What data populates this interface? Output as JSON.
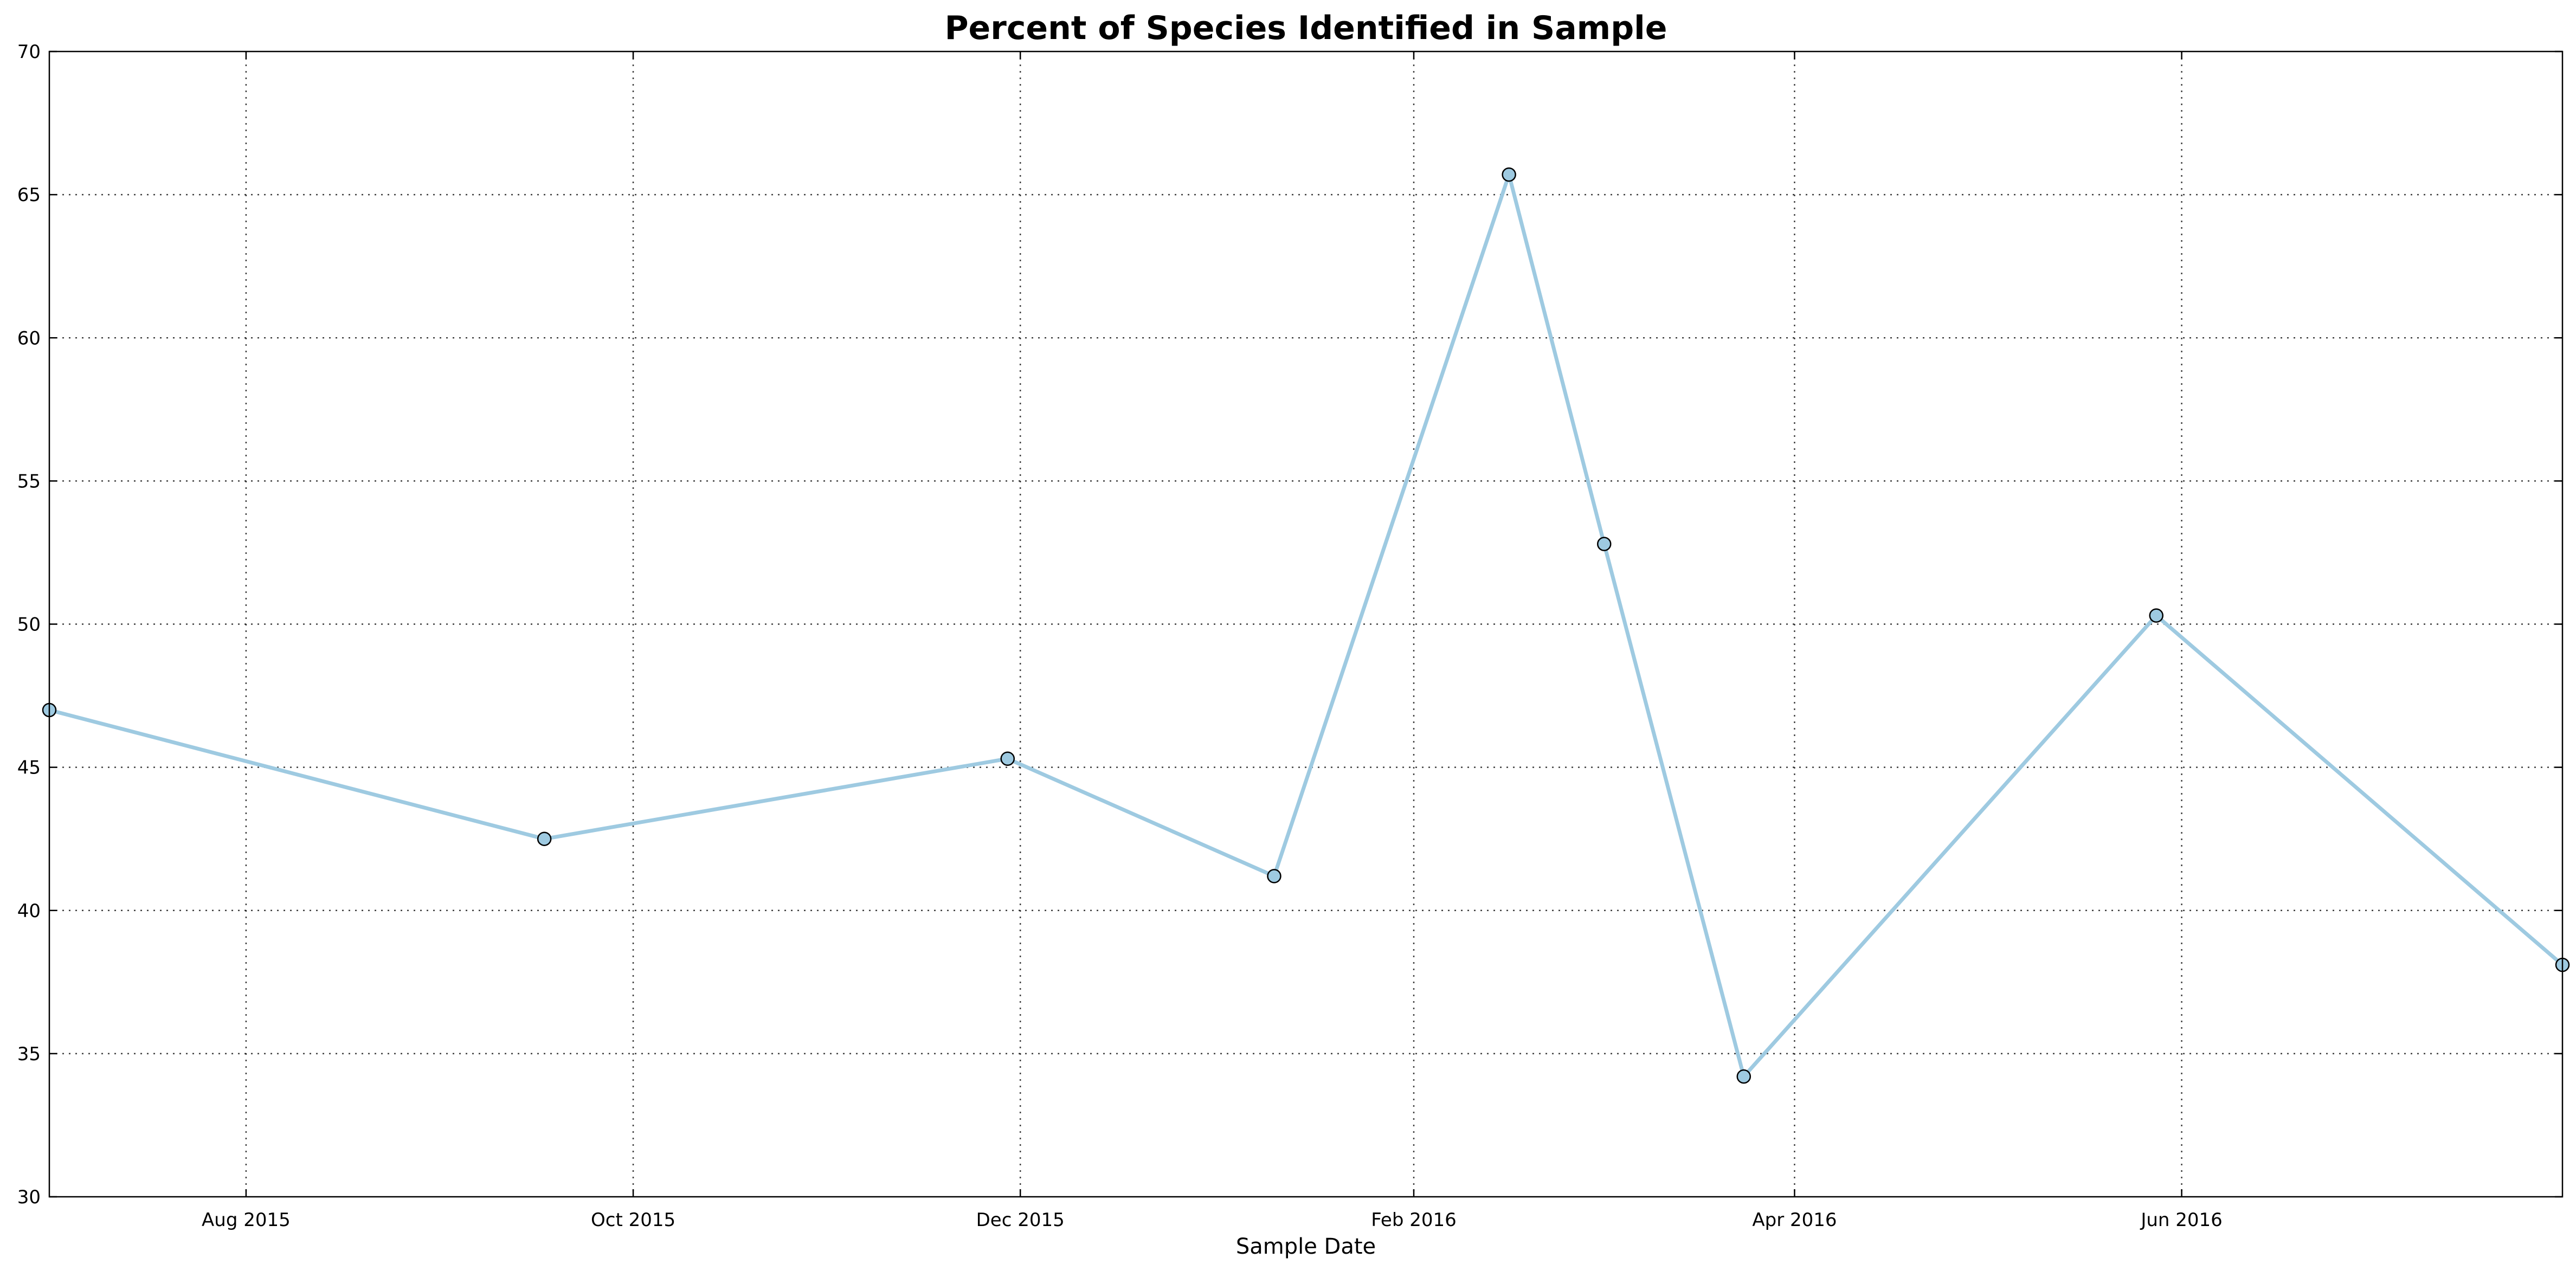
{
  "chart_data": {
    "type": "line",
    "title": "Percent of Species Identified in Sample",
    "xlabel": "Sample Date",
    "ylabel": "",
    "xlim": [
      "2015-07-01",
      "2016-07-31"
    ],
    "ylim": [
      30,
      70
    ],
    "grid": true,
    "x_ticks": [
      {
        "date": "2015-08-01",
        "label": "Aug 2015"
      },
      {
        "date": "2015-10-01",
        "label": "Oct 2015"
      },
      {
        "date": "2015-12-01",
        "label": "Dec 2015"
      },
      {
        "date": "2016-02-01",
        "label": "Feb 2016"
      },
      {
        "date": "2016-04-01",
        "label": "Apr 2016"
      },
      {
        "date": "2016-06-01",
        "label": "Jun 2016"
      }
    ],
    "y_ticks": [
      30,
      35,
      40,
      45,
      50,
      55,
      60,
      65,
      70
    ],
    "colors": {
      "line": "#9ecae1",
      "marker_fill": "#9ecae1",
      "marker_edge": "#000000",
      "grid": "#000000",
      "axes": "#000000"
    },
    "series": [
      {
        "x": [
          "2015-07-01",
          "2015-09-17",
          "2015-11-29",
          "2016-01-10",
          "2016-02-16",
          "2016-03-02",
          "2016-03-24",
          "2016-05-28",
          "2016-07-31"
        ],
        "y": [
          47.0,
          42.5,
          45.3,
          41.2,
          65.7,
          52.8,
          34.2,
          50.3,
          38.1
        ]
      }
    ]
  }
}
